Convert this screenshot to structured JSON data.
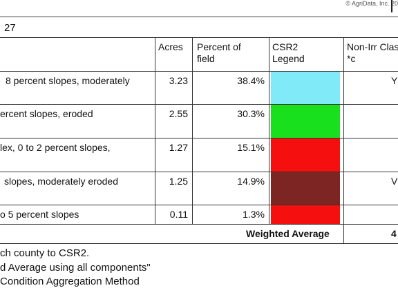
{
  "header": {
    "copyright": "© AgriData, Inc. 20",
    "title_fragment": "27"
  },
  "table": {
    "columns": {
      "acres": "Acres",
      "percent_line1": "Percent of",
      "percent_line2": "field",
      "csr2_line1": "CSR2",
      "csr2_line2": "Legend",
      "nonirr_line1": "Non-Irr Clas",
      "nonirr_line2": "*c"
    },
    "rows": [
      {
        "description": "8 percent slopes, moderately",
        "acres": "3.23",
        "percent": "38.4%",
        "color": "#80eaf8",
        "tail": "Y"
      },
      {
        "description": "ercent slopes, eroded",
        "acres": "2.55",
        "percent": "30.3%",
        "color": "#19e01c",
        "tail": ""
      },
      {
        "description": "lex, 0 to 2 percent slopes,",
        "acres": "1.27",
        "percent": "15.1%",
        "color": "#f50f0f",
        "tail": ""
      },
      {
        "description": "slopes, moderately eroded",
        "acres": "1.25",
        "percent": "14.9%",
        "color": "#7d2522",
        "tail": "V"
      },
      {
        "description": "o 5 percent slopes",
        "acres": "0.11",
        "percent": "1.3%",
        "color": "#f50f0f",
        "tail": ""
      }
    ],
    "weighted_average_label": "Weighted Average",
    "weighted_average_tail": "4"
  },
  "notes": [
    "ch county to CSR2.",
    "d Average using all components\"",
    "Condition Aggregation Method"
  ]
}
